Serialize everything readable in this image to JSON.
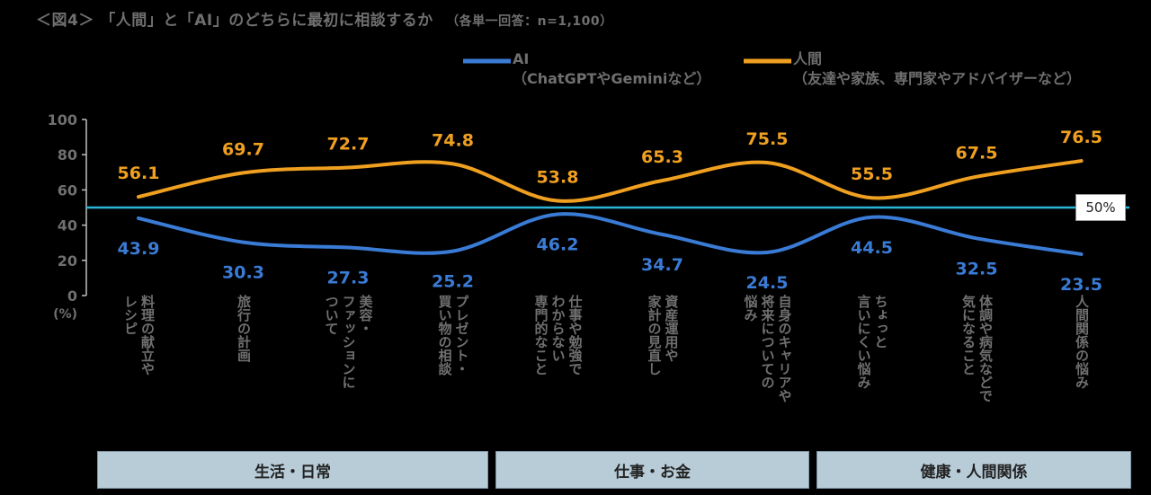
{
  "title": {
    "main": "＜図4＞ 「人間」と「AI」のどちらに最初に相談するか",
    "sub": "（各単一回答：n=1,100）"
  },
  "legend": {
    "ai": {
      "name": "AI",
      "sub": "（ChatGPTやGeminiなど）"
    },
    "human": {
      "name": "人間",
      "sub": "（友達や家族、専門家やアドバイザーなど）"
    }
  },
  "groups": [
    {
      "label": "生活・日常"
    },
    {
      "label": "仕事・お金"
    },
    {
      "label": "健康・人間関係"
    }
  ],
  "reference": {
    "label": "50%",
    "value": 50
  },
  "colors": {
    "ai": "#3a7bd5",
    "human": "#f0a020",
    "reference": "#2ab5d8",
    "band": "#b8ccd8"
  },
  "chart_data": {
    "type": "line",
    "categories": [
      "料理の献立や\nレシピ",
      "旅行の計画",
      "美容・\nファッションに\nついて",
      "プレゼント・\n買い物の相談",
      "仕事や勉強で\nわからない\n専門的なこと",
      "資産運用や\n家計の見直し",
      "自身のキャリアや\n将来についての\n悩み",
      "ちょっと\n言いにくい悩み",
      "体調や病気などで\n気になること",
      "人間関係の悩み"
    ],
    "series": [
      {
        "name": "AI",
        "values": [
          43.9,
          30.3,
          27.3,
          25.2,
          46.2,
          34.7,
          24.5,
          44.5,
          32.5,
          23.5
        ]
      },
      {
        "name": "人間",
        "values": [
          56.1,
          69.7,
          72.7,
          74.8,
          53.8,
          65.3,
          75.5,
          55.5,
          67.5,
          76.5
        ]
      }
    ],
    "ylim": [
      0,
      100
    ],
    "yticks": [
      "0",
      "20",
      "40",
      "60",
      "80",
      "100"
    ],
    "ylabel": "(%)",
    "grid": false,
    "legend_position": "top"
  }
}
